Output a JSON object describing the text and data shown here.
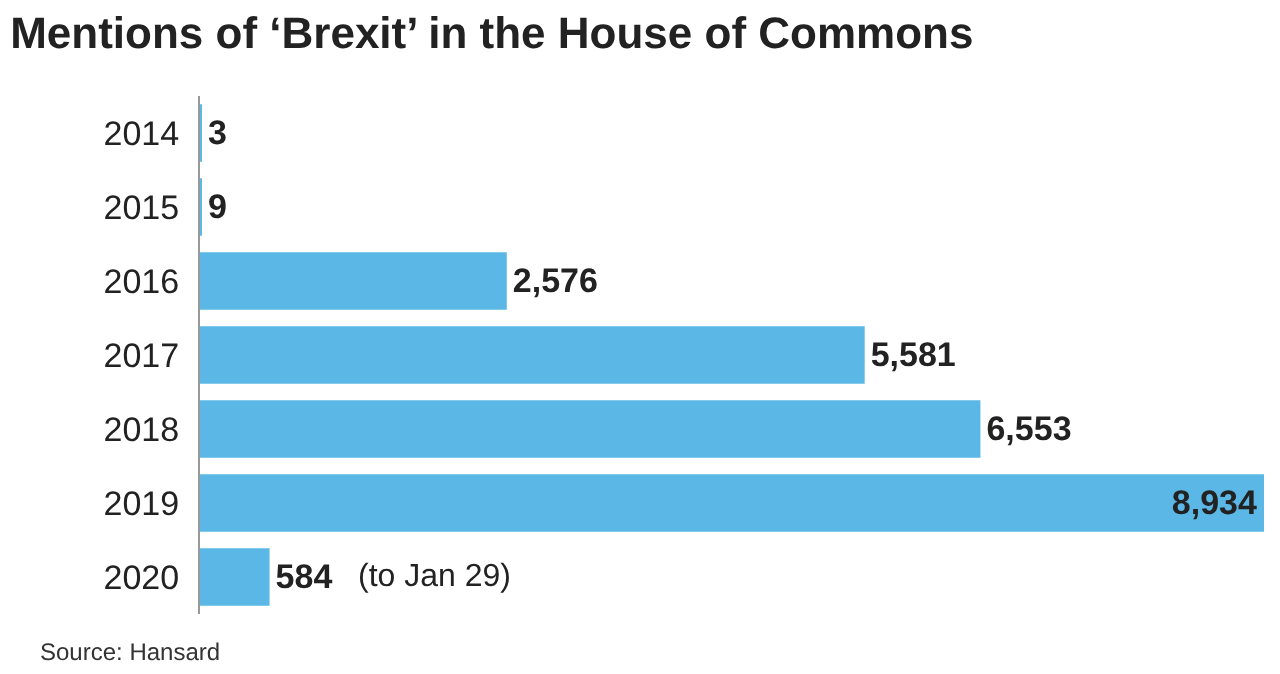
{
  "chart_data": {
    "type": "bar",
    "orientation": "horizontal",
    "title": "Mentions of ‘Brexit’ in the House of Commons",
    "categories": [
      "2014",
      "2015",
      "2016",
      "2017",
      "2018",
      "2019",
      "2020"
    ],
    "values": [
      3,
      9,
      2576,
      5581,
      6553,
      8934,
      584
    ],
    "value_labels": [
      "3",
      "9",
      "2,576",
      "5,581",
      "6,553",
      "8,934",
      "584"
    ],
    "color": "#5bb8e6",
    "xlim": [
      0,
      8934
    ],
    "tick_labels": "y",
    "annotations": [
      {
        "text": "(to Jan 29)",
        "x": 584,
        "y": "2020"
      },
      "Source: Hansard"
    ]
  }
}
